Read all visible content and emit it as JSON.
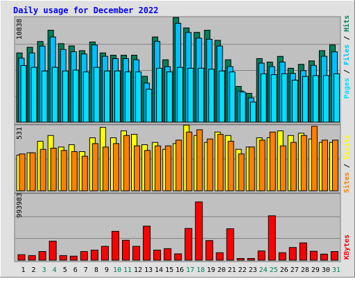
{
  "chart_data": [
    {
      "type": "bar",
      "panel": "hits",
      "title": "Daily usage for December 2022",
      "categories": [
        "1",
        "2",
        "3",
        "4",
        "5",
        "6",
        "7",
        "8",
        "9",
        "10",
        "11",
        "12",
        "13",
        "14",
        "15",
        "16",
        "17",
        "18",
        "19",
        "20",
        "21",
        "22",
        "23",
        "24",
        "25",
        "26",
        "27",
        "28",
        "29",
        "30",
        "31"
      ],
      "weekend_days": [
        "3",
        "4",
        "10",
        "11",
        "17",
        "18",
        "24",
        "25",
        "31"
      ],
      "ytick_label": "10838",
      "ylim": [
        0,
        11400
      ],
      "ylabel_parts": [
        "Pages",
        "Files",
        "Hits"
      ],
      "grid": true,
      "series": [
        {
          "name": "Hits",
          "values": [
            7580,
            8200,
            8830,
            10070,
            8600,
            8350,
            7830,
            8780,
            7580,
            7330,
            7330,
            7330,
            5020,
            9330,
            6830,
            11460,
            10320,
            9830,
            10070,
            8960,
            6830,
            3910,
            3150,
            6960,
            6580,
            7200,
            5900,
            6330,
            6710,
            7830,
            8460
          ]
        },
        {
          "name": "Files",
          "values": [
            7000,
            7580,
            8330,
            9330,
            7960,
            7710,
            7460,
            8450,
            7210,
            6960,
            6960,
            6830,
            4270,
            8840,
            6080,
            10830,
            9820,
            9200,
            9080,
            8330,
            6080,
            3410,
            2660,
            6460,
            6080,
            6580,
            5330,
            5640,
            6210,
            7210,
            7700
          ]
        },
        {
          "name": "Pages",
          "values": [
            6200,
            6000,
            5600,
            6000,
            5600,
            5700,
            5500,
            6000,
            5600,
            5600,
            5500,
            5500,
            3600,
            5900,
            5500,
            6000,
            5900,
            5900,
            5800,
            5600,
            5500,
            3300,
            2200,
            5300,
            5200,
            5300,
            4600,
            5000,
            5100,
            5100,
            5300
          ]
        }
      ],
      "colors": {
        "Hits": "#00805c",
        "Files": "#00c0ff",
        "Pages": "#00e0ff"
      }
    },
    {
      "type": "bar",
      "panel": "visits",
      "categories": [
        "1",
        "2",
        "3",
        "4",
        "5",
        "6",
        "7",
        "8",
        "9",
        "10",
        "11",
        "12",
        "13",
        "14",
        "15",
        "16",
        "17",
        "18",
        "19",
        "20",
        "21",
        "22",
        "23",
        "24",
        "25",
        "26",
        "27",
        "28",
        "29",
        "30",
        "31"
      ],
      "ytick_label": "531",
      "ylim": [
        0,
        560
      ],
      "ylabel_parts": [
        "Sites",
        "Visits"
      ],
      "grid": true,
      "series": [
        {
          "name": "Visits",
          "values": [
            310,
            330,
            430,
            480,
            380,
            400,
            340,
            460,
            550,
            460,
            520,
            490,
            400,
            420,
            360,
            410,
            570,
            480,
            420,
            510,
            480,
            360,
            380,
            460,
            460,
            520,
            480,
            500,
            450,
            420,
            420
          ]
        },
        {
          "name": "Sites",
          "values": [
            320,
            330,
            360,
            370,
            350,
            340,
            300,
            410,
            380,
            410,
            480,
            390,
            350,
            390,
            390,
            440,
            510,
            530,
            450,
            490,
            430,
            320,
            380,
            440,
            510,
            390,
            420,
            480,
            560,
            440,
            440
          ]
        }
      ],
      "colors": {
        "Visits": "#ffff00",
        "Sites": "#ff8000"
      }
    },
    {
      "type": "bar",
      "panel": "kbytes",
      "categories": [
        "1",
        "2",
        "3",
        "4",
        "5",
        "6",
        "7",
        "8",
        "9",
        "10",
        "11",
        "12",
        "13",
        "14",
        "15",
        "16",
        "17",
        "18",
        "19",
        "20",
        "21",
        "22",
        "23",
        "24",
        "25",
        "26",
        "27",
        "28",
        "29",
        "30",
        "31"
      ],
      "ytick_label": "993983",
      "ylim": [
        0,
        1130000
      ],
      "ylabel_parts": [
        "KBytes"
      ],
      "grid": true,
      "series": [
        {
          "name": "KBytes",
          "values": [
            95000,
            80000,
            150000,
            330000,
            80000,
            70000,
            150000,
            175000,
            240000,
            500000,
            345000,
            240000,
            590000,
            175000,
            200000,
            110000,
            550000,
            1010000,
            340000,
            130000,
            545000,
            30000,
            30000,
            160000,
            770000,
            130000,
            220000,
            300000,
            155000,
            105000,
            150000
          ]
        }
      ],
      "colors": {
        "KBytes": "#ff0000"
      }
    }
  ],
  "colors": {
    "title": "#0000ff",
    "weekday_label": "#000000",
    "weekend_label": "#00805c",
    "panel_bg": "#c0c0c0",
    "frame_bg": "#e0e0e0",
    "grid": "#808080",
    "kbytes_label": "#ff0000",
    "sites_label": "#ff8000",
    "visits_label": "#ffff00",
    "pages_label": "#00e0ff",
    "files_label": "#00c0ff",
    "hits_label": "#00805c"
  }
}
